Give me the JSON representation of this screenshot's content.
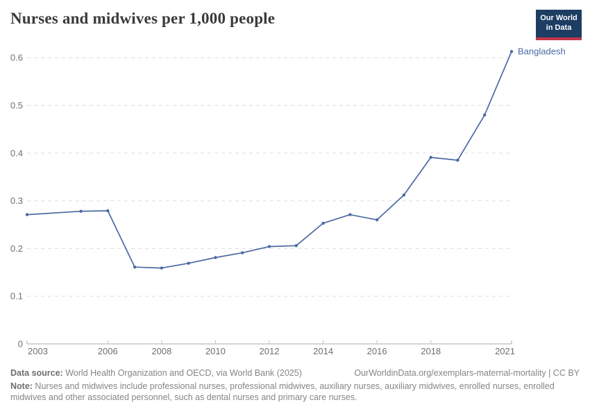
{
  "header": {
    "logo": {
      "line1": "Our World",
      "line2": "in Data",
      "bg_color": "#1d3d63",
      "bar_color": "#c33746"
    }
  },
  "chart_data": {
    "type": "line",
    "title": "Nurses and midwives per 1,000 people",
    "xlabel": "",
    "ylabel": "",
    "xlim": [
      2003,
      2021
    ],
    "ylim": [
      0,
      0.6
    ],
    "xticks": [
      2003,
      2006,
      2008,
      2010,
      2012,
      2014,
      2016,
      2018,
      2021
    ],
    "yticks": [
      0,
      0.1,
      0.2,
      0.3,
      0.4,
      0.5,
      0.6
    ],
    "ytick_labels": [
      "0",
      "0.1",
      "0.2",
      "0.3",
      "0.4",
      "0.5",
      "0.6"
    ],
    "grid": "dashed-horizontal",
    "legend_position": "end-of-line-label",
    "missing_years": [
      2004
    ],
    "series": [
      {
        "name": "Bangladesh",
        "color": "#4a69a2",
        "points": [
          [
            2003,
            0.271
          ],
          [
            2005,
            0.278
          ],
          [
            2006,
            0.279
          ],
          [
            2007,
            0.161
          ],
          [
            2008,
            0.159
          ],
          [
            2009,
            0.169
          ],
          [
            2010,
            0.181
          ],
          [
            2011,
            0.191
          ],
          [
            2012,
            0.204
          ],
          [
            2013,
            0.206
          ],
          [
            2014,
            0.253
          ],
          [
            2015,
            0.271
          ],
          [
            2016,
            0.26
          ],
          [
            2017,
            0.312
          ],
          [
            2018,
            0.391
          ],
          [
            2019,
            0.385
          ],
          [
            2020,
            0.48
          ],
          [
            2021,
            0.613
          ]
        ]
      }
    ]
  },
  "footer": {
    "datasource_label": "Data source:",
    "datasource_text": " World Health Organization and OECD, via World Bank (2025)",
    "link": "OurWorldinData.org/exemplars-maternal-mortality | CC BY",
    "note_label": "Note:",
    "note_text": " Nurses and midwives include professional nurses, professional midwives, auxiliary nurses, auxiliary midwives, enrolled nurses, enrolled midwives and other associated personnel, such as dental nurses and primary care nurses."
  }
}
